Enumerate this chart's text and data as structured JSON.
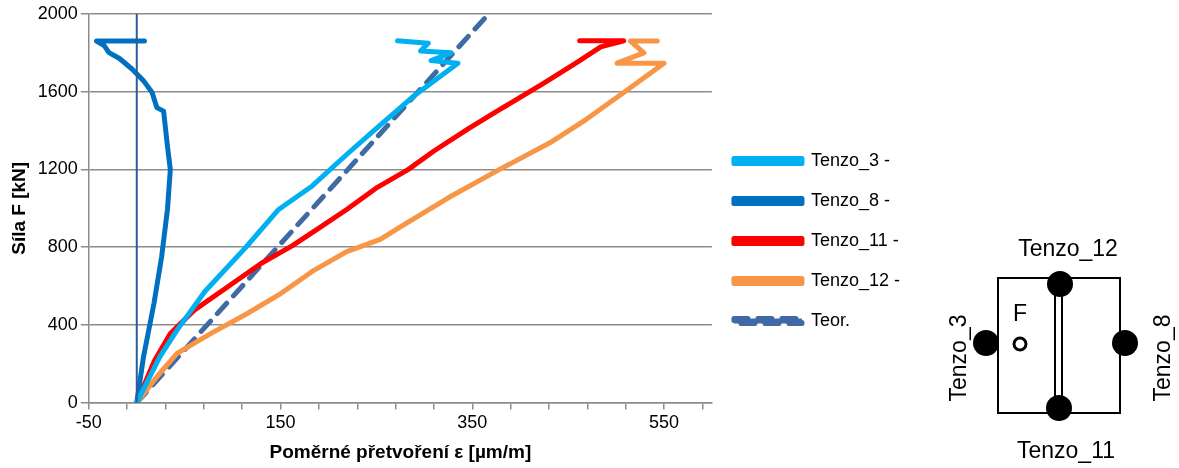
{
  "chart_data": {
    "type": "line",
    "xlabel": "Poměrné přetvoření ε [µm/m]",
    "ylabel": "Síla F [kN]",
    "xlim": [
      -50,
      600
    ],
    "xticks": [
      -50,
      {
        "value": -10,
        "label": null
      },
      {
        "value": 30,
        "label": null
      },
      {
        "value": 70,
        "label": null
      },
      {
        "value": 110,
        "label": null
      },
      150,
      {
        "value": 190,
        "label": null
      },
      {
        "value": 230,
        "label": null
      },
      {
        "value": 270,
        "label": null
      },
      {
        "value": 310,
        "label": null
      },
      350,
      {
        "value": 390,
        "label": null
      },
      {
        "value": 430,
        "label": null
      },
      {
        "value": 470,
        "label": null
      },
      {
        "value": 510,
        "label": null
      },
      550,
      {
        "value": 590,
        "label": null
      }
    ],
    "ylim": [
      0,
      2000
    ],
    "yticks": [
      0,
      400,
      800,
      1200,
      1600,
      2000
    ],
    "grid": "y",
    "legend": "right",
    "marker": "none",
    "ref_lines": [
      {
        "axis": "x",
        "value": 0,
        "color": "#2e5c9a"
      }
    ],
    "series": [
      {
        "name": "Tenzo_3 -",
        "color": "#00b0f0",
        "x": [
          0,
          24,
          42,
          71,
          113,
          148,
          183,
          219,
          247,
          275,
          289,
          335,
          307,
          328,
          296,
          304,
          272
        ],
        "values": [
          0,
          235,
          373,
          572,
          795,
          994,
          1115,
          1277,
          1398,
          1518,
          1578,
          1747,
          1760,
          1800,
          1810,
          1850,
          1862
        ]
      },
      {
        "name": "Tenzo_8 -",
        "color": "#0070c0",
        "x": [
          0,
          7,
          18,
          26,
          32,
          35,
          32,
          28,
          21,
          16,
          7,
          -5,
          -18,
          -29,
          -34,
          -42,
          8
        ],
        "values": [
          0,
          235,
          512,
          753,
          994,
          1199,
          1319,
          1500,
          1518,
          1596,
          1657,
          1717,
          1771,
          1801,
          1837,
          1861,
          1861
        ]
      },
      {
        "name": "Tenzo_11 -",
        "color": "#ff0000",
        "x": [
          0,
          18,
          35,
          60,
          95,
          130,
          162,
          190,
          219,
          251,
          283,
          310,
          346,
          378,
          423,
          458,
          484,
          508,
          462
        ],
        "values": [
          0,
          211,
          355,
          476,
          596,
          717,
          807,
          898,
          994,
          1108,
          1199,
          1295,
          1410,
          1506,
          1639,
          1747,
          1831,
          1862,
          1862
        ]
      },
      {
        "name": "Tenzo_12 -",
        "color": "#f79646",
        "x": [
          0,
          21,
          42,
          77,
          113,
          148,
          183,
          219,
          254,
          275,
          325,
          378,
          431,
          469,
          508,
          550,
          501,
          529,
          515,
          543
        ],
        "values": [
          0,
          133,
          253,
          355,
          452,
          554,
          675,
          777,
          840,
          904,
          1054,
          1199,
          1337,
          1458,
          1596,
          1747,
          1747,
          1800,
          1861,
          1861
        ]
      },
      {
        "name": "Teor.",
        "color": "#3f6aa3",
        "line_style": "dashed",
        "x": [
          0,
          367
        ],
        "values": [
          0,
          2000
        ]
      }
    ],
    "annotations": [
      "Tenzo_12",
      "Tenzo_3",
      "F",
      "Tenzo_8",
      "Tenzo_11"
    ]
  }
}
